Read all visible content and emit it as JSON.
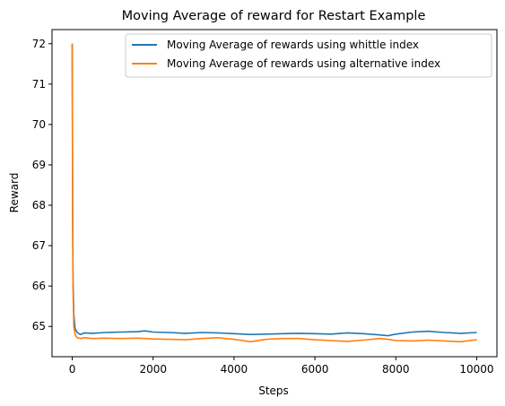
{
  "chart_data": {
    "type": "line",
    "title": "Moving Average of reward for Restart Example",
    "xlabel": "Steps",
    "ylabel": "Reward",
    "xlim": [
      -500,
      10500
    ],
    "ylim": [
      64.25,
      72.35
    ],
    "xticks": [
      0,
      2000,
      4000,
      6000,
      8000,
      10000
    ],
    "yticks": [
      65,
      66,
      67,
      68,
      69,
      70,
      71,
      72
    ],
    "grid": false,
    "legend_position": "top-right",
    "series": [
      {
        "name": "Moving Average of rewards using whittle index",
        "color": "#1f77b4",
        "x": [
          0,
          10,
          20,
          40,
          70,
          120,
          200,
          300,
          500,
          800,
          1200,
          1600,
          1800,
          2000,
          2400,
          2800,
          3200,
          3600,
          4000,
          4400,
          4800,
          5200,
          5600,
          6000,
          6400,
          6800,
          7200,
          7600,
          7800,
          8000,
          8400,
          8800,
          9200,
          9600,
          10000
        ],
        "values": [
          72.0,
          68.0,
          66.2,
          65.3,
          64.95,
          64.85,
          64.8,
          64.84,
          64.83,
          64.85,
          64.86,
          64.87,
          64.89,
          64.86,
          64.85,
          64.83,
          64.85,
          64.84,
          64.82,
          64.8,
          64.81,
          64.82,
          64.83,
          64.82,
          64.81,
          64.84,
          64.82,
          64.79,
          64.77,
          64.81,
          64.86,
          64.88,
          64.85,
          64.83,
          64.85
        ]
      },
      {
        "name": "Moving Average of rewards using alternative index",
        "color": "#ff7f0e",
        "x": [
          0,
          10,
          20,
          40,
          70,
          120,
          200,
          300,
          500,
          800,
          1200,
          1600,
          1800,
          2000,
          2400,
          2800,
          3200,
          3600,
          4000,
          4400,
          4800,
          5200,
          5600,
          6000,
          6400,
          6800,
          7200,
          7600,
          7800,
          8000,
          8400,
          8800,
          9200,
          9600,
          10000
        ],
        "values": [
          72.0,
          67.5,
          65.9,
          65.0,
          64.8,
          64.72,
          64.7,
          64.72,
          64.7,
          64.71,
          64.7,
          64.71,
          64.7,
          64.69,
          64.68,
          64.67,
          64.7,
          64.72,
          64.68,
          64.62,
          64.68,
          64.7,
          64.7,
          64.67,
          64.65,
          64.63,
          64.66,
          64.7,
          64.68,
          64.65,
          64.64,
          64.66,
          64.64,
          64.62,
          64.67
        ]
      }
    ]
  }
}
